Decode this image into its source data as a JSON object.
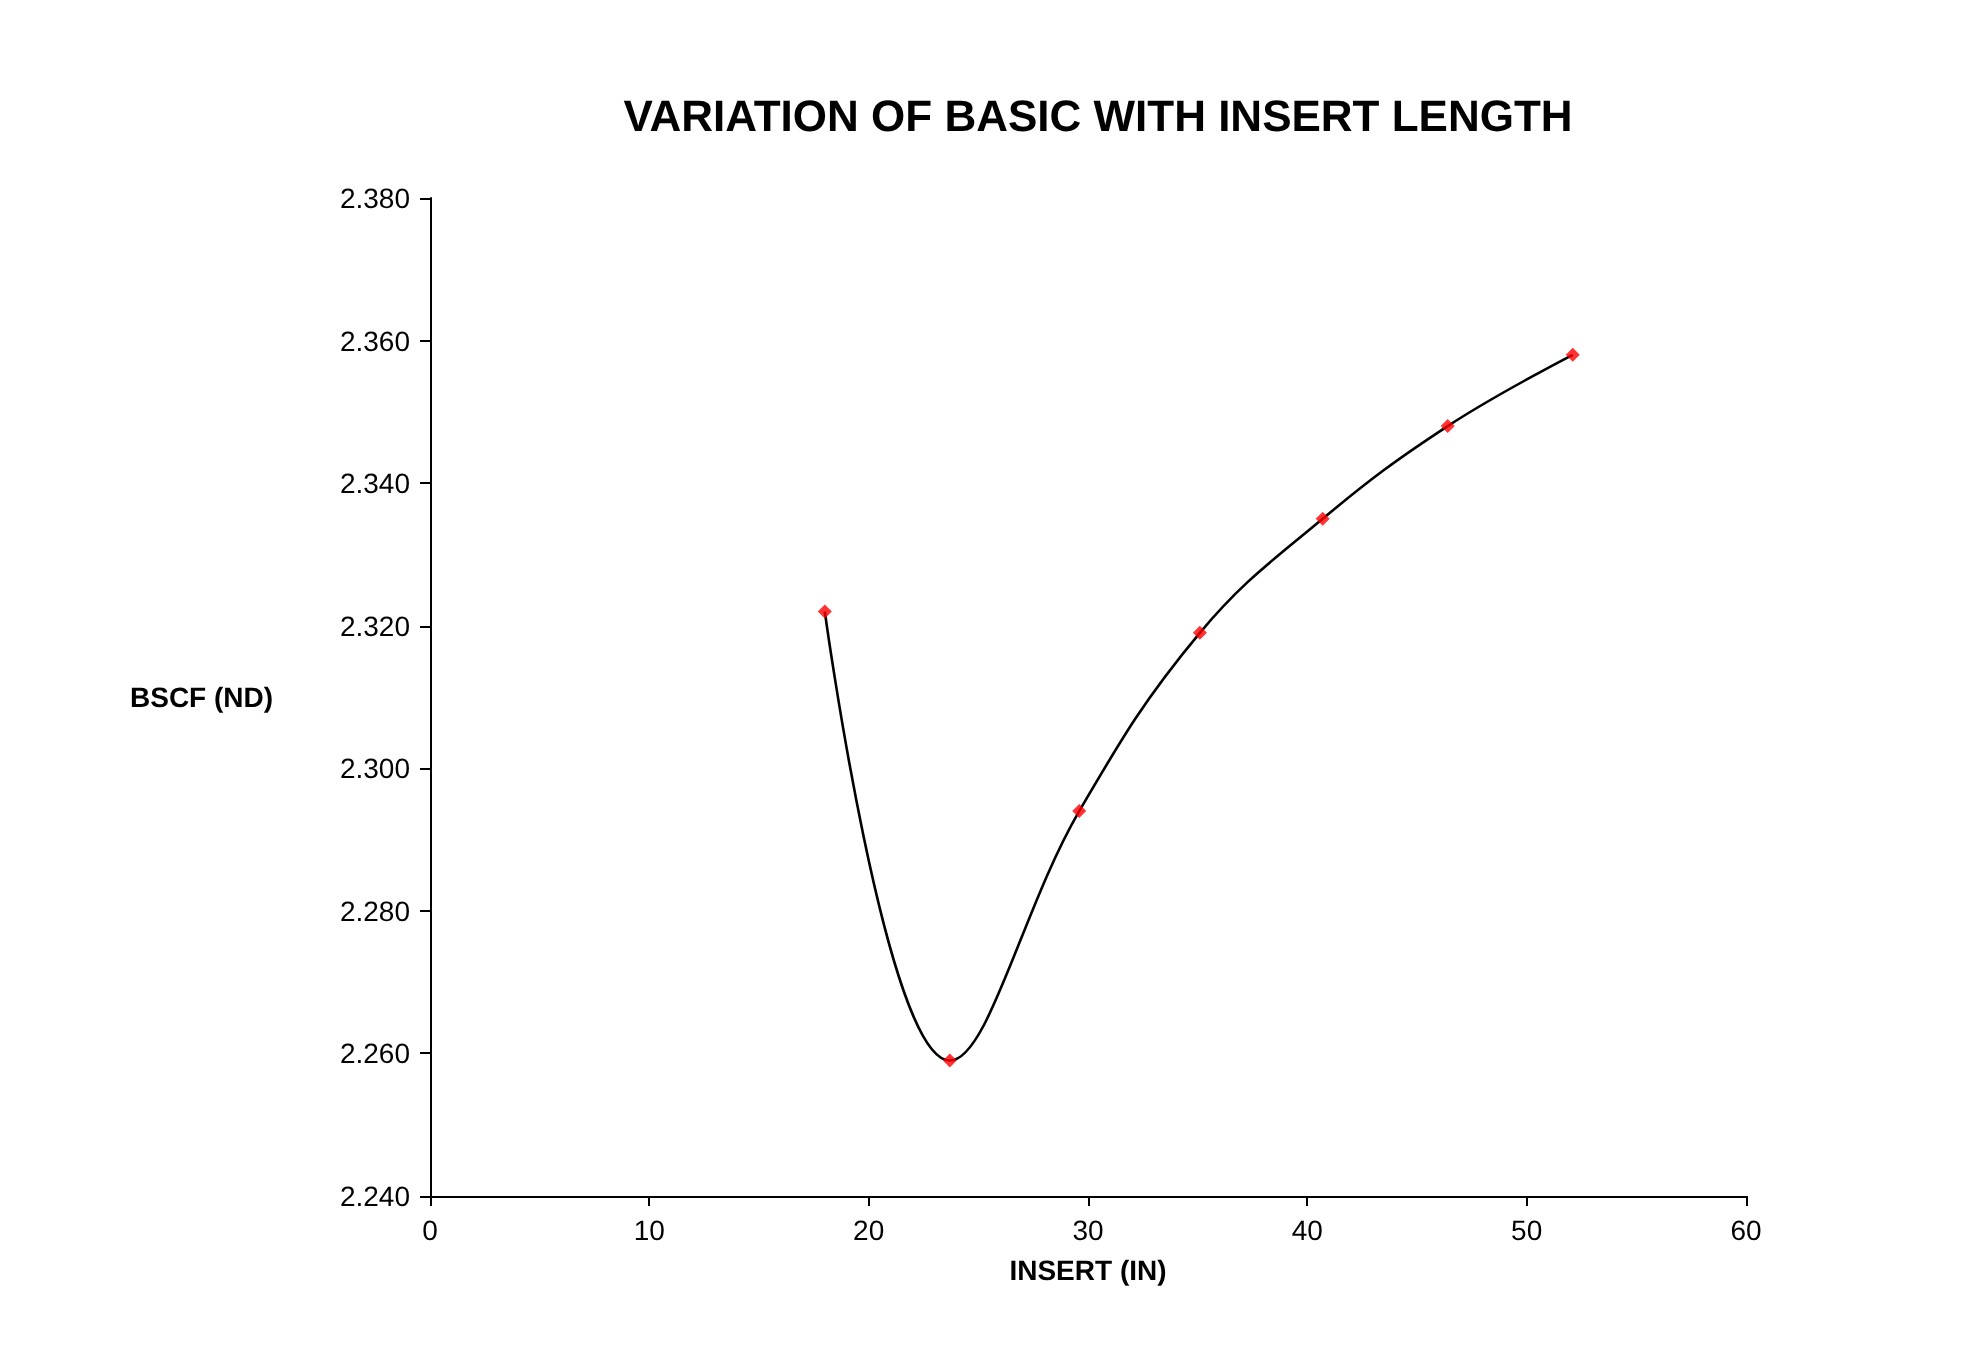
{
  "chart_data": {
    "type": "line",
    "title": "VARIATION OF BASIC WITH INSERT LENGTH",
    "xlabel": "INSERT (IN)",
    "ylabel": "BSCF (ND)",
    "series": [
      {
        "color": "#000000",
        "marker": "none",
        "x": [
          18.0,
          23.7,
          29.6,
          35.1,
          40.7,
          46.4,
          52.1
        ],
        "values": [
          2.322,
          2.259,
          2.294,
          2.319,
          2.335,
          2.348,
          2.358
        ]
      },
      {
        "type": "scatter",
        "color": "#ff0000",
        "marker": "diamond",
        "x": [
          18.0,
          23.7,
          29.6,
          35.1,
          40.7,
          46.4,
          52.1
        ],
        "values": [
          2.322,
          2.259,
          2.294,
          2.319,
          2.335,
          2.348,
          2.358
        ]
      }
    ],
    "xlim": [
      0,
      60
    ],
    "xticks": [
      0,
      10,
      20,
      30,
      40,
      50,
      60
    ],
    "ylim": [
      2.24,
      2.38
    ],
    "yticks": [
      {
        "value": 2.24,
        "label": "2.240"
      },
      {
        "value": 2.26,
        "label": "2.260"
      },
      {
        "value": 2.28,
        "label": "2.280"
      },
      {
        "value": 2.3,
        "label": "2.300"
      },
      {
        "value": 2.32,
        "label": "2.320"
      },
      {
        "value": 2.34,
        "label": "2.340"
      },
      {
        "value": 2.36,
        "label": "2.360"
      },
      {
        "value": 2.38,
        "label": "2.380"
      }
    ],
    "grid": false
  }
}
